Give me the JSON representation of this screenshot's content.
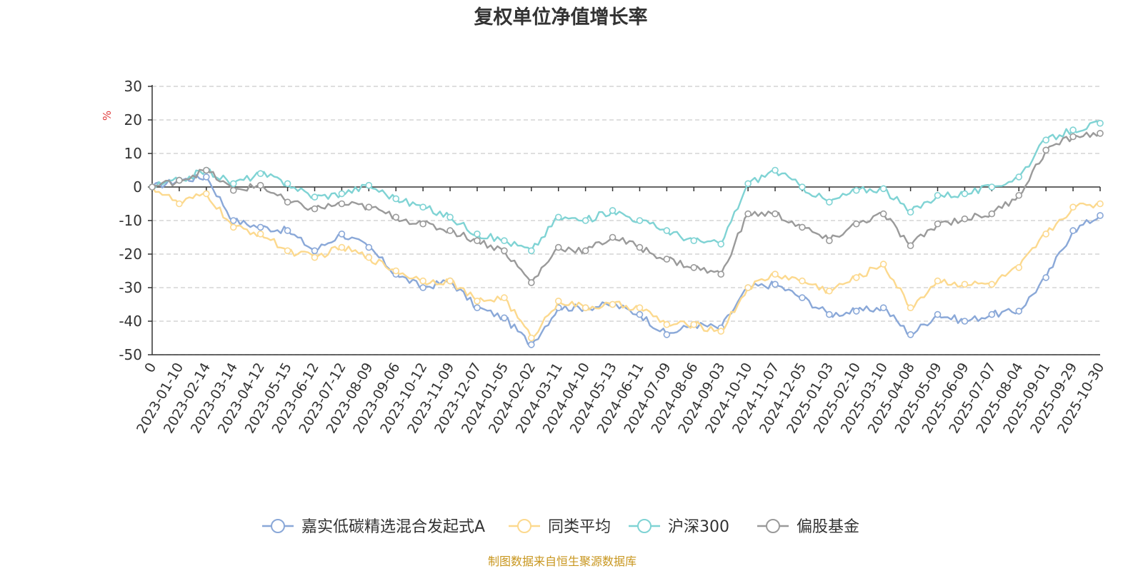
{
  "chart_data": {
    "type": "line",
    "title": "复权单位净值增长率",
    "ylabel": "%",
    "ylim": [
      -50,
      30
    ],
    "yticks": [
      30,
      20,
      10,
      0,
      -10,
      -20,
      -30,
      -40,
      -50
    ],
    "grid": true,
    "legend_position": "bottom-center",
    "categories": [
      "0",
      "2023-01-10",
      "2023-02-14",
      "2023-03-14",
      "2023-04-12",
      "2023-05-15",
      "2023-06-12",
      "2023-07-12",
      "2023-08-09",
      "2023-09-06",
      "2023-10-12",
      "2023-11-09",
      "2023-12-07",
      "2024-01-05",
      "2024-02-02",
      "2024-03-11",
      "2024-04-10",
      "2024-05-13",
      "2024-06-11",
      "2024-07-09",
      "2024-08-06",
      "2024-09-03",
      "2024-10-10",
      "2024-11-07",
      "2024-12-05",
      "2025-01-03",
      "2025-02-10",
      "2025-03-10",
      "2025-04-08",
      "2025-05-09",
      "2025-06-09",
      "2025-07-07",
      "2025-08-04",
      "2025-09-01",
      "2025-09-29",
      "2025-10-30"
    ],
    "series": [
      {
        "name": "嘉实低碳精选混合发起式A",
        "color": "#8aa8d8",
        "values": [
          0,
          2,
          3,
          -10,
          -12,
          -13,
          -19,
          -14,
          -18,
          -26,
          -30,
          -28,
          -36,
          -39,
          -47,
          -36,
          -36,
          -35,
          -38,
          -44,
          -41,
          -42,
          -30,
          -29,
          -33,
          -38,
          -37,
          -36,
          -44,
          -38,
          -40,
          -38,
          -37,
          -27,
          -13,
          -8.5
        ]
      },
      {
        "name": "同类平均",
        "color": "#fcd98e",
        "values": [
          0,
          -5,
          -2,
          -12,
          -14,
          -19,
          -21,
          -18,
          -21,
          -25,
          -28,
          -28,
          -34,
          -33,
          -45,
          -34,
          -36,
          -35,
          -36,
          -41,
          -41,
          -43,
          -30,
          -26,
          -28,
          -31,
          -27,
          -23,
          -36,
          -28,
          -29,
          -29,
          -24,
          -14,
          -6,
          -5
        ]
      },
      {
        "name": "沪深300",
        "color": "#7fd3d4",
        "values": [
          0,
          2,
          5,
          1,
          4,
          1,
          -3,
          -2,
          0.5,
          -3.5,
          -6,
          -9,
          -14,
          -16,
          -19,
          -9,
          -10,
          -7,
          -10,
          -13,
          -16,
          -17,
          1,
          5,
          0,
          -4.5,
          -1,
          -0.5,
          -7.5,
          -2.5,
          -2,
          0,
          3,
          14,
          17,
          19
        ]
      },
      {
        "name": "偏股基金",
        "color": "#9a9a9a",
        "values": [
          0,
          2,
          5,
          -1,
          0.5,
          -4.5,
          -6.5,
          -5,
          -6,
          -9,
          -11,
          -13,
          -16,
          -19,
          -28.5,
          -18,
          -19,
          -15,
          -18,
          -21.5,
          -24,
          -26,
          -8,
          -8,
          -12,
          -16,
          -11,
          -8,
          -17.5,
          -11,
          -9.5,
          -8,
          -2.5,
          11,
          15,
          16
        ]
      }
    ]
  },
  "source_note": "制图数据来自恒生聚源数据库",
  "colors": {
    "axis": "#333333",
    "grid": "#cccccc",
    "unit": "#e03c3c",
    "source": "#c8961e"
  }
}
